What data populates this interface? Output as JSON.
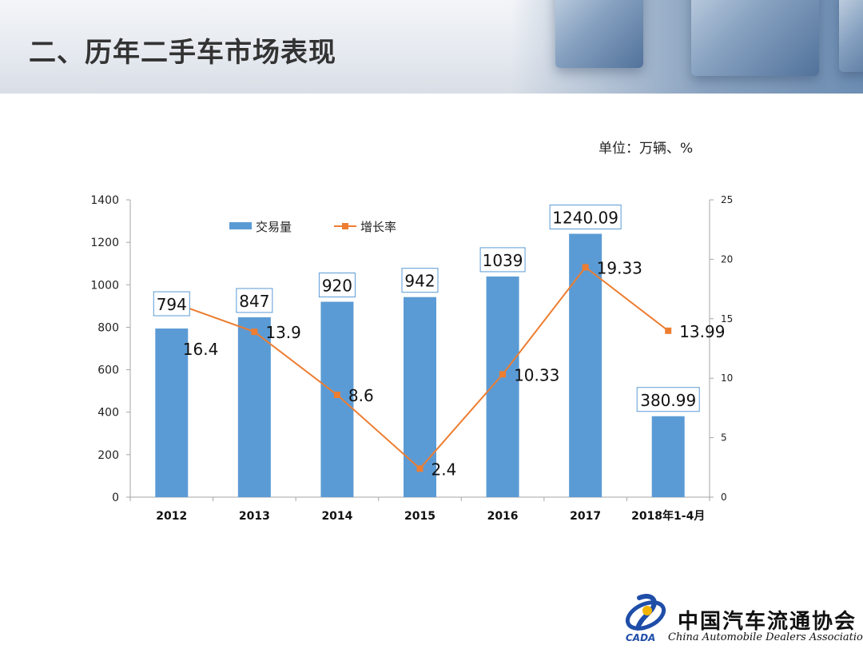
{
  "header": {
    "title": "二、历年二手车市场表现"
  },
  "unit_note": "单位：万辆、%",
  "chart_data": {
    "type": "bar",
    "categories": [
      "2012",
      "2013",
      "2014",
      "2015",
      "2016",
      "2017",
      "2018年1-4月"
    ],
    "series": [
      {
        "name": "交易量",
        "type": "bar",
        "axis": "left",
        "values": [
          794,
          847,
          920,
          942,
          1039,
          1240.09,
          380.99
        ],
        "labels": [
          "794",
          "847",
          "920",
          "942",
          "1039",
          "1240.09",
          "380.99"
        ],
        "color": "#5b9bd5"
      },
      {
        "name": "增长率",
        "type": "line",
        "axis": "right",
        "values": [
          16.4,
          13.9,
          8.6,
          2.4,
          10.33,
          19.33,
          13.99
        ],
        "labels": [
          "16.4",
          "13.9",
          "8.6",
          "2.4",
          "10.33",
          "19.33",
          "13.99"
        ],
        "color": "#ed7d31"
      }
    ],
    "y_left": {
      "min": 0,
      "max": 1400,
      "ticks": [
        "0",
        "200",
        "400",
        "600",
        "800",
        "1000",
        "1200",
        "1400"
      ]
    },
    "y_right": {
      "min": 0,
      "max": 25,
      "ticks": [
        "0",
        "5",
        "10",
        "15",
        "20",
        "25"
      ]
    },
    "legend": "top-left",
    "grid": false
  },
  "logo": {
    "name_cn": "中国汽车流通协会",
    "name_en": "China Automobile Dealers Association",
    "abbr": "CADA",
    "colors": {
      "primary": "#1f4ea8",
      "accent": "#f2b400"
    }
  }
}
